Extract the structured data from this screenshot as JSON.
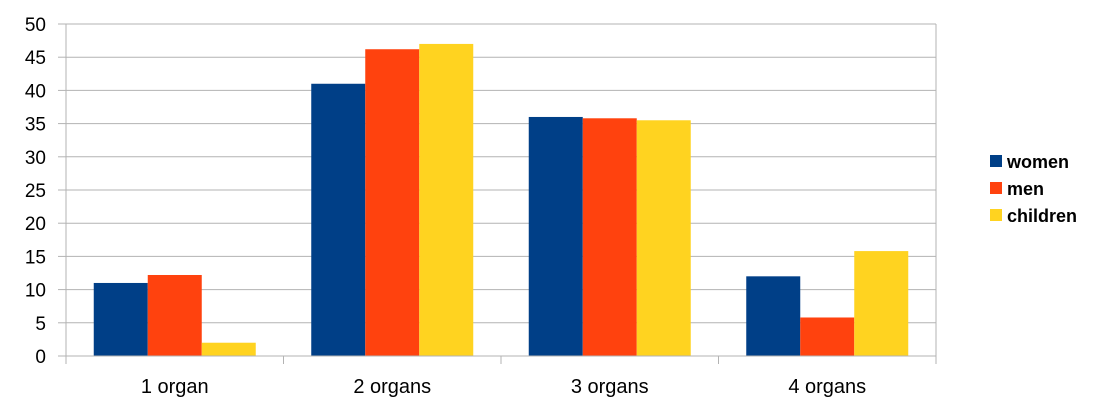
{
  "chart_data": {
    "type": "bar",
    "title": "",
    "xlabel": "",
    "ylabel": "",
    "categories": [
      "1 organ",
      "2 organs",
      "3 organs",
      "4 organs"
    ],
    "series": [
      {
        "name": "women",
        "values": [
          11,
          41,
          36,
          12
        ],
        "color": "#003F87"
      },
      {
        "name": "men",
        "values": [
          12.2,
          46.2,
          35.8,
          5.8
        ],
        "color": "#FF420E"
      },
      {
        "name": "children",
        "values": [
          2,
          47,
          35.5,
          15.8
        ],
        "color": "#FFD320"
      }
    ],
    "ylim": [
      0,
      50
    ],
    "yticks": [
      0,
      5,
      10,
      15,
      20,
      25,
      30,
      35,
      40,
      45,
      50
    ],
    "grid": true,
    "legend_position": "right"
  }
}
